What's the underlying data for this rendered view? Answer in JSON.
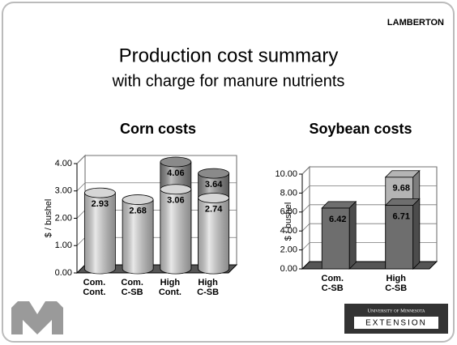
{
  "header": {
    "label": "LAMBERTON",
    "title": "Production cost summary",
    "subtitle": "with charge for manure nutrients"
  },
  "chart_data": [
    {
      "type": "bar",
      "shape": "cylinder",
      "overlap": true,
      "title": "Corn costs",
      "ylabel": "$ / bushel",
      "categories": [
        [
          "Com.",
          "Cont."
        ],
        [
          "Com.",
          "C-SB"
        ],
        [
          "High",
          "Cont."
        ],
        [
          "High",
          "C-SB"
        ]
      ],
      "series": [
        {
          "color": "#8a8a8a",
          "values": [
            null,
            null,
            4.06,
            3.64
          ]
        },
        {
          "color": "#d6d6d6",
          "values": [
            2.93,
            2.68,
            3.06,
            2.74
          ]
        }
      ],
      "ylim": [
        0,
        4
      ],
      "yticks": [
        {
          "value": 0,
          "label": "0.00"
        },
        {
          "value": 1,
          "label": "1.00"
        },
        {
          "value": 2,
          "label": "2.00"
        },
        {
          "value": 3,
          "label": "3.00"
        },
        {
          "value": 4,
          "label": "4.00"
        }
      ],
      "grid": true
    },
    {
      "type": "bar",
      "shape": "box",
      "overlap": true,
      "title": "Soybean costs",
      "ylabel": "$ / bushel",
      "categories": [
        [
          "Com.",
          "C-SB"
        ],
        [
          "High",
          "C-SB"
        ]
      ],
      "series": [
        {
          "color": "#b4b4b4",
          "values": [
            null,
            9.68
          ]
        },
        {
          "color": "#6e6e6e",
          "values": [
            6.42,
            6.71
          ]
        }
      ],
      "ylim": [
        0,
        10
      ],
      "yticks": [
        {
          "value": 0,
          "label": "0.00"
        },
        {
          "value": 2,
          "label": "2.00"
        },
        {
          "value": 4,
          "label": "4.00"
        },
        {
          "value": 6,
          "label": "6.00"
        },
        {
          "value": 8,
          "label": "8.00"
        },
        {
          "value": 10,
          "label": "10.00"
        }
      ],
      "grid": true
    }
  ],
  "logo": {
    "university": "University of Minnesota",
    "unit": "EXTENSION"
  }
}
